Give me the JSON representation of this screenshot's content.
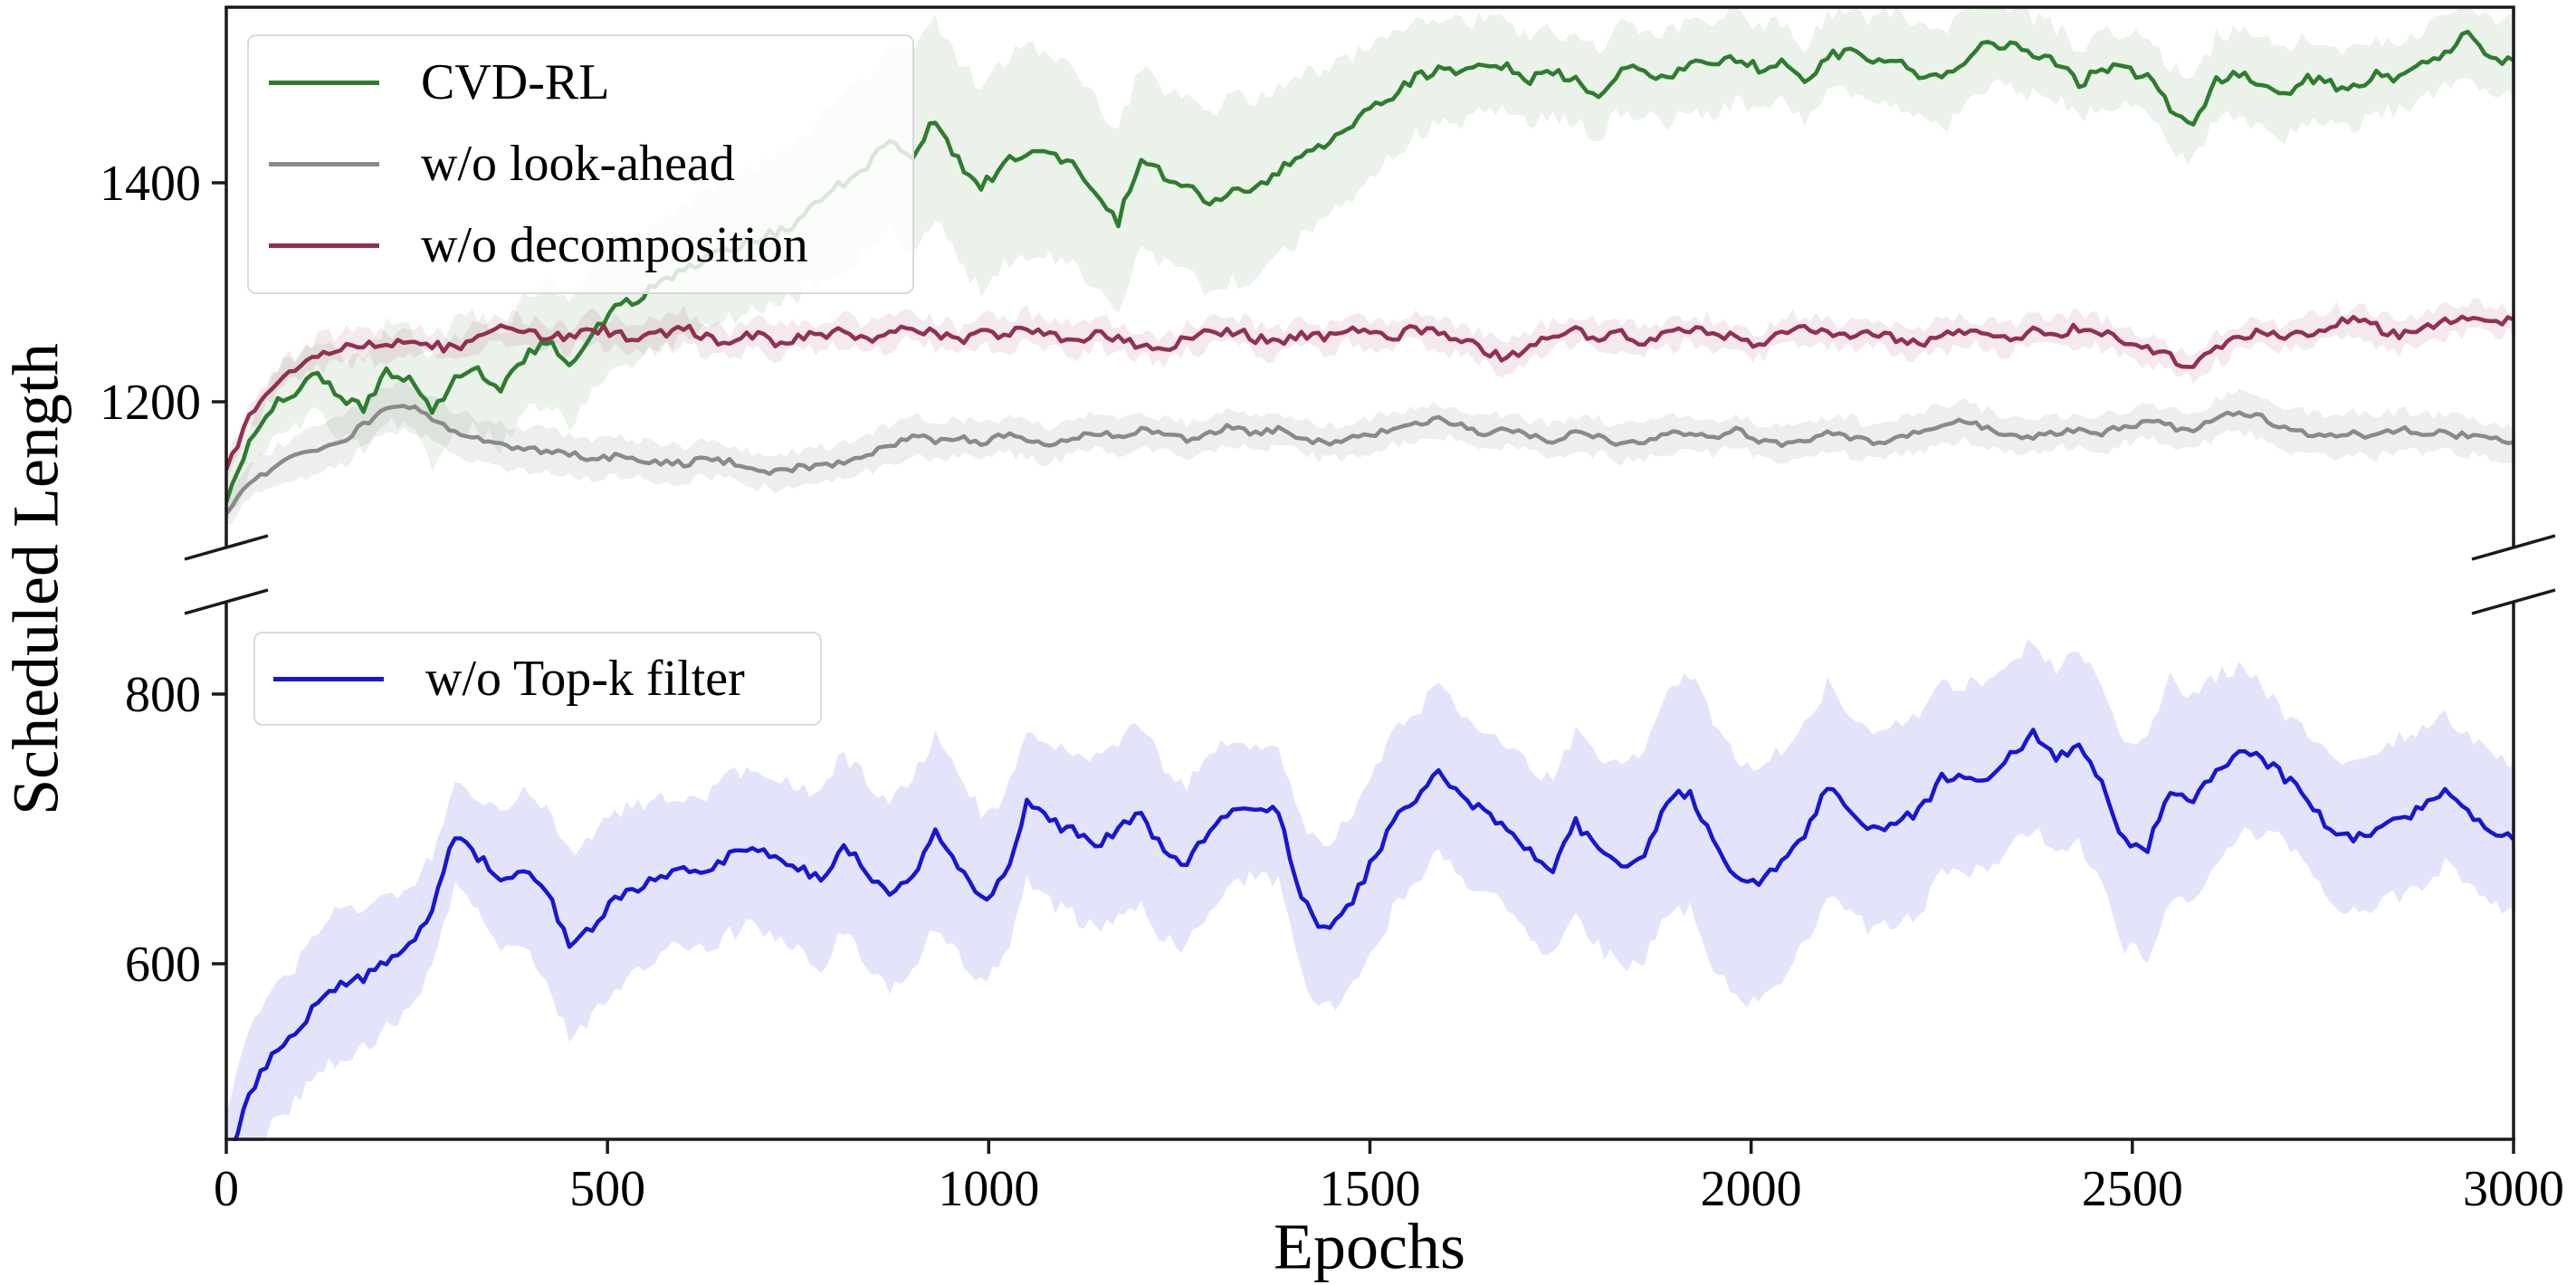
{
  "chart_data": {
    "type": "line",
    "title": "",
    "xlabel": "Epochs",
    "ylabel": "Scheduled Length",
    "grid": false,
    "x_ticks": [
      0,
      500,
      1000,
      1500,
      2000,
      2500,
      3000
    ],
    "x_range": [
      0,
      3000
    ],
    "broken_y_axis": {
      "top_panel": {
        "y_ticks": [
          1200,
          1400
        ],
        "value_range": [
          1065,
          1560
        ]
      },
      "bottom_panel": {
        "y_ticks": [
          600,
          800
        ],
        "value_range": [
          470,
          870
        ]
      }
    },
    "x_start": 0,
    "x_step": 30,
    "band_x_step": 150,
    "axis_color": "#1a1a1a",
    "legend_top_position": "upper-left-top-panel",
    "legend_bottom_position": "upper-left-bottom-panel",
    "series": [
      {
        "name": "CVD-RL",
        "panel": "top",
        "color": "#2d7d2d",
        "band_opacity": 0.1,
        "values": [
          1108,
          1160,
          1195,
          1210,
          1225,
          1205,
          1195,
          1228,
          1222,
          1188,
          1223,
          1228,
          1210,
          1240,
          1255,
          1235,
          1262,
          1285,
          1295,
          1308,
          1318,
          1330,
          1340,
          1348,
          1355,
          1365,
          1385,
          1400,
          1415,
          1440,
          1425,
          1458,
          1420,
          1395,
          1418,
          1430,
          1425,
          1420,
          1390,
          1365,
          1425,
          1405,
          1400,
          1380,
          1395,
          1393,
          1410,
          1425,
          1435,
          1450,
          1465,
          1480,
          1495,
          1505,
          1500,
          1510,
          1505,
          1495,
          1500,
          1495,
          1480,
          1505,
          1500,
          1495,
          1510,
          1505,
          1515,
          1505,
          1510,
          1490,
          1515,
          1520,
          1510,
          1515,
          1500,
          1495,
          1510,
          1530,
          1525,
          1515,
          1510,
          1490,
          1505,
          1505,
          1495,
          1470,
          1455,
          1495,
          1500,
          1490,
          1480,
          1495,
          1490,
          1485,
          1500,
          1495,
          1510,
          1520,
          1535,
          1515,
          1512
        ],
        "band": [
          20,
          38,
          50,
          55,
          60,
          70,
          90,
          95,
          80,
          85,
          60,
          40,
          38,
          42,
          35,
          45,
          32,
          35,
          42,
          30,
          35
        ]
      },
      {
        "name": "w/o look-ahead",
        "panel": "top",
        "color": "#8a8a8a",
        "band_opacity": 0.15,
        "values": [
          1098,
          1128,
          1138,
          1150,
          1155,
          1162,
          1180,
          1193,
          1196,
          1185,
          1172,
          1165,
          1160,
          1155,
          1156,
          1152,
          1148,
          1150,
          1147,
          1145,
          1143,
          1148,
          1145,
          1138,
          1136,
          1140,
          1142,
          1145,
          1152,
          1160,
          1170,
          1165,
          1168,
          1162,
          1170,
          1165,
          1160,
          1168,
          1172,
          1168,
          1175,
          1170,
          1165,
          1172,
          1178,
          1170,
          1175,
          1168,
          1162,
          1165,
          1170,
          1175,
          1180,
          1185,
          1178,
          1172,
          1175,
          1168,
          1165,
          1172,
          1168,
          1162,
          1165,
          1170,
          1172,
          1168,
          1175,
          1165,
          1160,
          1165,
          1170,
          1168,
          1162,
          1168,
          1172,
          1178,
          1182,
          1175,
          1170,
          1168,
          1172,
          1175,
          1170,
          1178,
          1182,
          1178,
          1172,
          1185,
          1192,
          1185,
          1175,
          1170,
          1168,
          1172,
          1168,
          1175,
          1170,
          1172,
          1168,
          1165,
          1163
        ],
        "band": [
          15,
          22,
          20,
          18,
          16,
          15,
          18,
          16,
          15,
          16,
          15,
          14,
          16,
          15,
          16,
          18,
          15,
          16,
          20,
          18,
          16
        ]
      },
      {
        "name": "w/o decomposition",
        "panel": "top",
        "color": "#93304e",
        "band_opacity": 0.1,
        "values": [
          1138,
          1185,
          1215,
          1232,
          1245,
          1248,
          1252,
          1248,
          1258,
          1252,
          1248,
          1262,
          1268,
          1265,
          1260,
          1258,
          1268,
          1262,
          1258,
          1262,
          1268,
          1258,
          1252,
          1262,
          1255,
          1258,
          1262,
          1265,
          1258,
          1262,
          1270,
          1262,
          1255,
          1265,
          1260,
          1268,
          1262,
          1255,
          1262,
          1258,
          1252,
          1245,
          1258,
          1262,
          1265,
          1258,
          1252,
          1262,
          1258,
          1265,
          1262,
          1258,
          1268,
          1262,
          1255,
          1248,
          1238,
          1252,
          1260,
          1265,
          1258,
          1262,
          1255,
          1260,
          1268,
          1262,
          1258,
          1252,
          1262,
          1268,
          1262,
          1258,
          1265,
          1258,
          1252,
          1260,
          1265,
          1262,
          1258,
          1265,
          1262,
          1268,
          1262,
          1255,
          1248,
          1240,
          1232,
          1248,
          1258,
          1265,
          1258,
          1262,
          1270,
          1275,
          1268,
          1262,
          1268,
          1272,
          1278,
          1272,
          1275
        ],
        "band": [
          10,
          14,
          12,
          12,
          14,
          12,
          13,
          14,
          12,
          13,
          12,
          14,
          12,
          13,
          12,
          13,
          14,
          12,
          13,
          14,
          12
        ]
      },
      {
        "name": "w/o Top-k filter",
        "panel": "bottom",
        "color": "#1717d2",
        "band_opacity": 0.12,
        "values": [
          448,
          505,
          530,
          548,
          572,
          585,
          590,
          600,
          612,
          640,
          695,
          680,
          662,
          670,
          655,
          612,
          628,
          648,
          655,
          665,
          670,
          668,
          680,
          688,
          678,
          672,
          662,
          690,
          668,
          650,
          665,
          698,
          672,
          648,
          662,
          718,
          705,
          698,
          688,
          700,
          710,
          682,
          672,
          700,
          712,
          715,
          712,
          648,
          625,
          640,
          672,
          705,
          722,
          745,
          722,
          712,
          702,
          682,
          670,
          705,
          685,
          672,
          682,
          722,
          728,
          690,
          662,
          658,
          675,
          695,
          730,
          712,
          700,
          705,
          712,
          738,
          736,
          740,
          755,
          770,
          752,
          762,
          732,
          690,
          686,
          730,
          722,
          745,
          757,
          752,
          738,
          722,
          698,
          692,
          700,
          708,
          715,
          730,
          712,
          700,
          692
        ],
        "band": [
          45,
          55,
          38,
          70,
          55,
          62,
          72,
          58,
          68,
          48,
          68,
          58,
          72,
          92,
          78,
          72,
          68,
          82,
          48,
          58,
          55
        ]
      }
    ]
  }
}
